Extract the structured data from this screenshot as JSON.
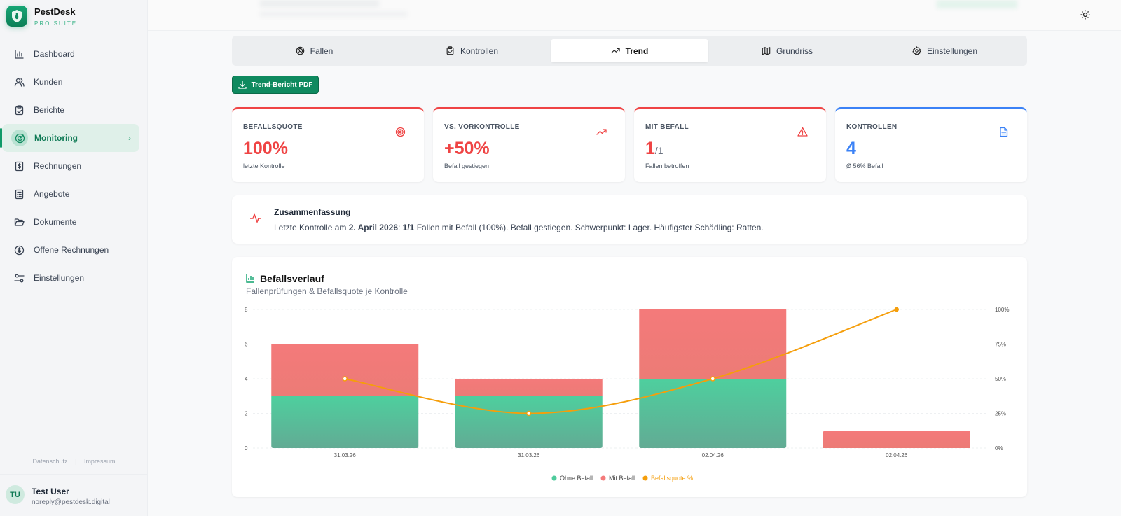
{
  "brand": {
    "name": "PestDesk",
    "subtitle": "PRO SUITE"
  },
  "sidebar": {
    "items": [
      {
        "label": "Dashboard",
        "icon": "bar-chart-icon"
      },
      {
        "label": "Kunden",
        "icon": "users-icon"
      },
      {
        "label": "Berichte",
        "icon": "clipboard-check-icon"
      },
      {
        "label": "Monitoring",
        "icon": "radar-icon",
        "active": true
      },
      {
        "label": "Rechnungen",
        "icon": "dollar-receipt-icon"
      },
      {
        "label": "Angebote",
        "icon": "calculator-icon"
      },
      {
        "label": "Dokumente",
        "icon": "folder-open-icon"
      },
      {
        "label": "Offene Rechnungen",
        "icon": "dollar-circle-icon"
      },
      {
        "label": "Einstellungen",
        "icon": "sliders-icon"
      }
    ],
    "footer": {
      "privacy": "Datenschutz",
      "separator": "|",
      "imprint": "Impressum"
    },
    "user": {
      "initials": "TU",
      "name": "Test User",
      "email": "noreply@pestdesk.digital"
    }
  },
  "tabs": [
    {
      "label": "Fallen",
      "icon": "target-icon"
    },
    {
      "label": "Kontrollen",
      "icon": "clipboard-check-icon"
    },
    {
      "label": "Trend",
      "icon": "trending-up-icon",
      "active": true
    },
    {
      "label": "Grundriss",
      "icon": "map-icon"
    },
    {
      "label": "Einstellungen",
      "icon": "gear-icon"
    }
  ],
  "actions": {
    "pdf_label": "Trend-Bericht PDF"
  },
  "kpis": [
    {
      "label": "BEFALLSQUOTE",
      "value": "100%",
      "sub": "letzte Kontrolle",
      "color": "#ef4444",
      "icon": "target-icon"
    },
    {
      "label": "VS. VORKONTROLLE",
      "value": "+50%",
      "sub": "Befall gestiegen",
      "color": "#ef4444",
      "icon": "trending-up-icon"
    },
    {
      "label": "MIT BEFALL",
      "value": "1",
      "value_suffix": "/1",
      "sub": "Fallen betroffen",
      "color": "#ef4444",
      "icon": "alert-triangle-icon"
    },
    {
      "label": "KONTROLLEN",
      "value": "4",
      "sub": "Ø 56% Befall",
      "color": "#3b82f6",
      "icon": "file-text-icon"
    }
  ],
  "summary": {
    "title": "Zusammenfassung",
    "prefix": "Letzte Kontrolle am ",
    "date": "2. April 2026",
    "colon": ": ",
    "ratio": "1/1",
    "rest": " Fallen mit Befall (100%). Befall gestiegen. Schwerpunkt: Lager. Häufigster Schädling: Ratten."
  },
  "chart_data": {
    "type": "bar",
    "title": "Befallsverlauf",
    "subtitle": "Fallenprüfungen & Befallsquote je Kontrolle",
    "categories": [
      "31.03.26",
      "31.03.26",
      "02.04.26",
      "02.04.26"
    ],
    "stacked": true,
    "series": [
      {
        "name": "Ohne Befall",
        "type": "bar",
        "color": "#4ecb9c",
        "values": [
          3,
          3,
          4,
          0
        ]
      },
      {
        "name": "Mit Befall",
        "type": "bar",
        "color": "#f47a7a",
        "values": [
          3,
          1,
          4,
          1
        ]
      },
      {
        "name": "Befallsquote %",
        "type": "line",
        "axis": "right",
        "color": "#f59e0b",
        "values": [
          50,
          25,
          50,
          100
        ]
      }
    ],
    "ylim": [
      0,
      8
    ],
    "yticks": [
      "0",
      "2",
      "4",
      "6",
      "8"
    ],
    "y2lim": [
      0,
      100
    ],
    "y2ticks": [
      "0%",
      "25%",
      "50%",
      "75%",
      "100%"
    ],
    "legend": "bottom",
    "grid": true
  }
}
